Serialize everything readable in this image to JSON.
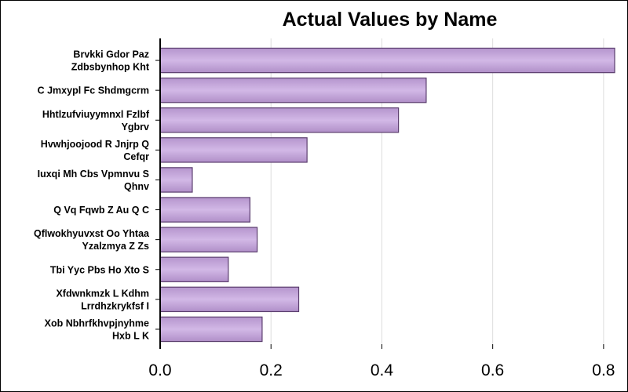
{
  "chart_data": {
    "type": "bar",
    "orientation": "horizontal",
    "title": "Actual Values by Name",
    "xlabel": "",
    "ylabel": "",
    "xlim": [
      0,
      0.82
    ],
    "xticks": [
      "0.0",
      "0.2",
      "0.4",
      "0.6",
      "0.8"
    ],
    "grid": "vertical",
    "bar_color": "#c4a6da",
    "bar_edge_color": "#5b3e6e",
    "categories": [
      [
        "Brvkki Gdor Paz",
        "Zdbsbynhop Kht"
      ],
      [
        "C Jmxypl Fc Shdmgcrm"
      ],
      [
        "Hhtlzufviuyymnxl Fzlbf",
        "Ygbrv"
      ],
      [
        "Hvwhjoojood R Jnjrp  Q",
        "Cefqr"
      ],
      [
        "Iuxqi Mh Cbs Vpmnvu S",
        "Qhnv"
      ],
      [
        "Q Vq  Fqwb  Z Au  Q   C"
      ],
      [
        "Qflwokhyuvxst Oo  Yhtaa",
        "Yzalzmya  Z Zs"
      ],
      [
        "Tbi Yyc Pbs  Ho Xto S"
      ],
      [
        "Xfdwnkmzk L  Kdhm",
        "Lrrdhzkrykfsf I"
      ],
      [
        "Xob Nbhrfkhvpjnyhme",
        "Hxb L K"
      ]
    ],
    "values": [
      0.82,
      0.48,
      0.43,
      0.265,
      0.058,
      0.162,
      0.175,
      0.123,
      0.25,
      0.184
    ]
  }
}
